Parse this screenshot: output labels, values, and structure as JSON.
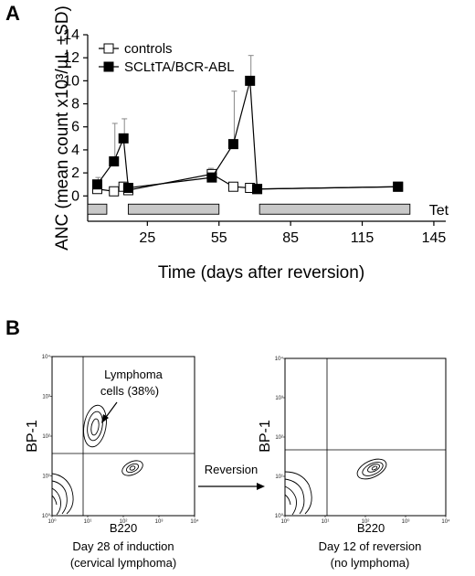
{
  "panel_a": {
    "label": "A",
    "chart_data": {
      "type": "line",
      "xlabel": "Time (days after reversion)",
      "ylabel": "ANC (mean count x10³/µL ±SD)",
      "xlim": [
        0,
        150
      ],
      "ylim": [
        -2.2,
        14
      ],
      "xticks": [
        "25",
        "55",
        "85",
        "115",
        "145"
      ],
      "xtick_values": [
        25,
        55,
        85,
        115,
        145
      ],
      "yticks": [
        "0",
        "2",
        "4",
        "6",
        "8",
        "10",
        "12",
        "14"
      ],
      "ytick_values": [
        0,
        2,
        4,
        6,
        8,
        10,
        12,
        14
      ],
      "grid": false,
      "legend_position": "top-left",
      "series": [
        {
          "name": "controls",
          "marker": "open-square",
          "x": [
            4,
            11,
            15,
            17,
            52,
            61,
            68,
            71,
            130
          ],
          "y": [
            0.6,
            0.4,
            0.8,
            0.5,
            1.9,
            0.8,
            0.7,
            0.6,
            0.8
          ],
          "sd": [
            0.3,
            0.2,
            0.4,
            0.2,
            0.5,
            0.3,
            0.2,
            0.2,
            0.3
          ]
        },
        {
          "name": "SCLtTA/BCR-ABL",
          "marker": "filled-square",
          "x": [
            4,
            11,
            15,
            17,
            52,
            61,
            68,
            71,
            130
          ],
          "y": [
            1.0,
            3.0,
            5.0,
            0.7,
            1.6,
            4.5,
            10.0,
            0.6,
            0.8
          ],
          "sd": [
            0.6,
            3.3,
            1.7,
            0.3,
            0.4,
            4.6,
            2.2,
            0.2,
            0.3
          ]
        }
      ],
      "tet_label": "Tet",
      "tet_periods": [
        [
          0,
          8
        ],
        [
          17,
          55
        ],
        [
          72,
          135
        ]
      ]
    }
  },
  "panel_b": {
    "label": "B",
    "reversion_label": "Reversion",
    "plots": [
      {
        "x_label": "B220",
        "y_label": "BP-1",
        "annotation": "Lymphoma\ncells (38%)",
        "annotation_line1": "Lymphoma",
        "annotation_line2": "cells (38%)",
        "caption_line1": "Day 28 of induction",
        "caption_line2": "(cervical lymphoma)",
        "x_ticks": [
          "10⁰",
          "10¹",
          "10²",
          "10³",
          "10⁴"
        ],
        "y_ticks": [
          "10⁰",
          "10¹",
          "10²",
          "10³",
          "10⁴"
        ]
      },
      {
        "x_label": "B220",
        "y_label": "BP-1",
        "caption_line1": "Day 12 of reversion",
        "caption_line2": "(no lymphoma)",
        "x_ticks": [
          "10⁰",
          "10¹",
          "10²",
          "10³",
          "10⁴"
        ],
        "y_ticks": [
          "10⁰",
          "10¹",
          "10²",
          "10³",
          "10⁴"
        ]
      }
    ]
  }
}
